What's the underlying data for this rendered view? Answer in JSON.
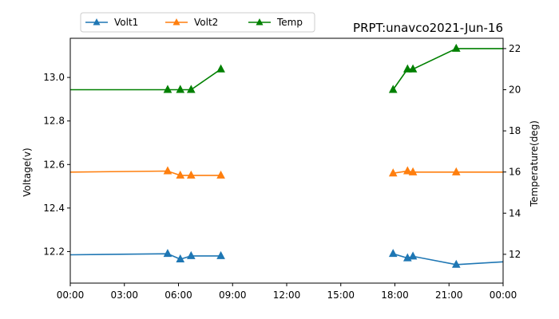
{
  "chart_data": {
    "type": "line",
    "title": "PRPT:unavco2021-Jun-16",
    "ylabel_left": "Voltage(v)",
    "ylabel_right": "Temperature(deg)",
    "xlim_hours": [
      0,
      24
    ],
    "x_ticks": [
      "00:00",
      "03:00",
      "06:00",
      "09:00",
      "12:00",
      "15:00",
      "18:00",
      "21:00",
      "00:00"
    ],
    "ylim_left": [
      12.055,
      13.18
    ],
    "ylim_right": [
      10.6,
      22.5
    ],
    "y_ticks_left": [
      12.2,
      12.4,
      12.6,
      12.8,
      13.0
    ],
    "y_ticks_left_labels": [
      "12.2",
      "12.4",
      "12.6",
      "12.8",
      "13.0"
    ],
    "y_ticks_right": [
      12,
      14,
      16,
      18,
      20,
      22
    ],
    "y_ticks_right_labels": [
      "12",
      "14",
      "16",
      "18",
      "20",
      "22"
    ],
    "grid": false,
    "legend_position": "top-left, outside plot",
    "series": [
      {
        "name": "Volt1",
        "axis": "left",
        "color": "#1f77b4",
        "segments": [
          [
            [
              0,
              12.185
            ]
          ],
          [
            [
              5.4,
              12.19
            ],
            [
              6.1,
              12.165
            ],
            [
              6.7,
              12.18
            ],
            [
              8.35,
              12.18
            ]
          ],
          [
            [
              17.9,
              12.19
            ],
            [
              18.7,
              12.17
            ],
            [
              19.0,
              12.178
            ],
            [
              21.4,
              12.14
            ]
          ],
          [
            [
              24,
              12.153
            ]
          ]
        ],
        "lines": [
          [
            [
              0,
              12.185
            ],
            [
              5.4,
              12.19
            ],
            [
              6.1,
              12.165
            ],
            [
              6.7,
              12.18
            ],
            [
              8.35,
              12.18
            ]
          ],
          [
            [
              17.9,
              12.19
            ],
            [
              18.7,
              12.17
            ],
            [
              19.0,
              12.178
            ],
            [
              21.4,
              12.14
            ],
            [
              24,
              12.153
            ]
          ]
        ],
        "markers": [
          [
            5.4,
            12.19
          ],
          [
            6.1,
            12.165
          ],
          [
            6.7,
            12.18
          ],
          [
            8.35,
            12.18
          ],
          [
            17.9,
            12.19
          ],
          [
            18.7,
            12.17
          ],
          [
            19.0,
            12.178
          ],
          [
            21.4,
            12.14
          ]
        ]
      },
      {
        "name": "Volt2",
        "axis": "left",
        "color": "#ff7f0e",
        "lines": [
          [
            [
              0,
              12.565
            ],
            [
              5.4,
              12.57
            ],
            [
              6.1,
              12.55
            ],
            [
              6.7,
              12.55
            ],
            [
              8.35,
              12.55
            ]
          ],
          [
            [
              17.9,
              12.56
            ],
            [
              18.7,
              12.57
            ],
            [
              19.0,
              12.565
            ],
            [
              21.4,
              12.565
            ],
            [
              24,
              12.565
            ]
          ]
        ],
        "markers": [
          [
            5.4,
            12.57
          ],
          [
            6.1,
            12.55
          ],
          [
            6.7,
            12.55
          ],
          [
            8.35,
            12.55
          ],
          [
            17.9,
            12.56
          ],
          [
            18.7,
            12.57
          ],
          [
            19.0,
            12.565
          ],
          [
            21.4,
            12.565
          ]
        ]
      },
      {
        "name": "Temp",
        "axis": "right",
        "color": "#008000",
        "lines": [
          [
            [
              0,
              20
            ],
            [
              5.4,
              20
            ],
            [
              6.1,
              20
            ],
            [
              6.7,
              20
            ],
            [
              8.35,
              21
            ]
          ],
          [
            [
              17.9,
              20
            ],
            [
              18.7,
              21
            ],
            [
              19.0,
              21
            ],
            [
              21.4,
              22
            ],
            [
              24,
              22
            ]
          ]
        ],
        "markers": [
          [
            5.4,
            20
          ],
          [
            6.1,
            20
          ],
          [
            6.7,
            20
          ],
          [
            8.35,
            21
          ],
          [
            17.9,
            20
          ],
          [
            18.7,
            21
          ],
          [
            19.0,
            21
          ],
          [
            21.4,
            22
          ]
        ]
      }
    ]
  }
}
